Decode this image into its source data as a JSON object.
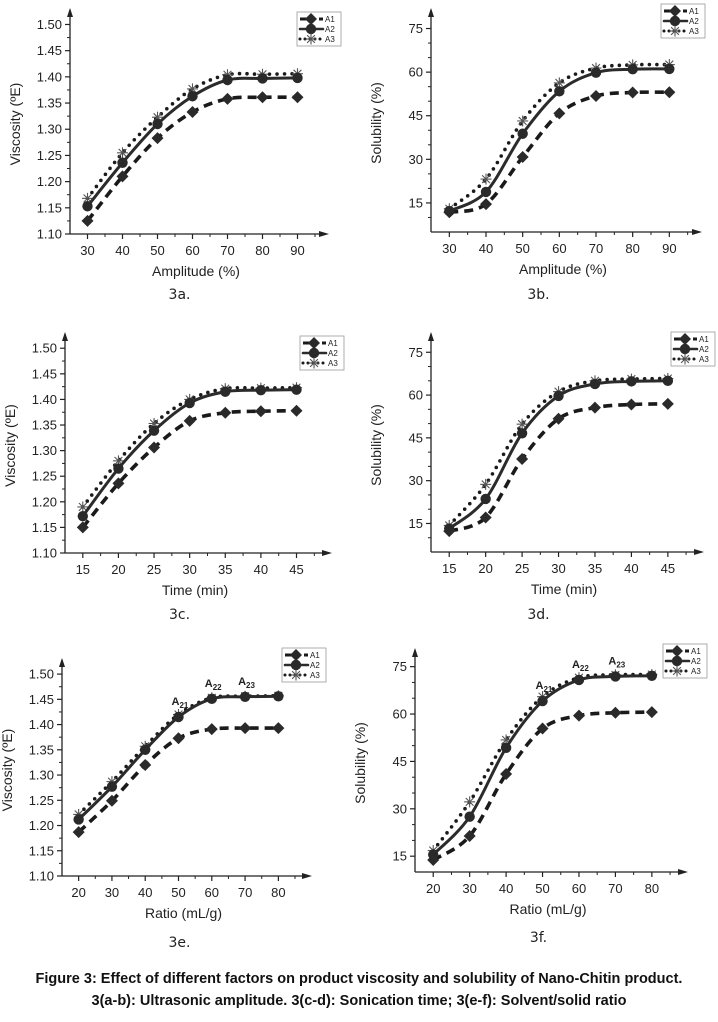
{
  "figure": {
    "caption_line1": "Figure 3: Effect of different factors on product viscosity and solubility of Nano-Chitin product.",
    "caption_line2": "3(a-b): Ultrasonic amplitude. 3(c-d): Sonication time; 3(e-f): Solvent/solid ratio"
  },
  "chart_data": [
    {
      "id": "3a",
      "panel_label": "3a.",
      "type": "line",
      "title": "",
      "xlabel": "Amplitude (%)",
      "ylabel": "Viscosity (ºE)",
      "x": [
        30,
        40,
        50,
        60,
        70,
        80,
        90
      ],
      "xlim": [
        25,
        97
      ],
      "ylim": [
        1.1,
        1.52
      ],
      "xticks": [
        30,
        40,
        50,
        60,
        70,
        80,
        90
      ],
      "yticks": [
        1.1,
        1.15,
        1.2,
        1.25,
        1.3,
        1.35,
        1.4,
        1.45,
        1.5
      ],
      "ytick_format": 2,
      "grid": false,
      "legend": "top-right",
      "series": [
        {
          "name": "A1",
          "style": "dashed",
          "marker": "diamond",
          "values": [
            1.125,
            1.21,
            1.283,
            1.333,
            1.358,
            1.361,
            1.361
          ]
        },
        {
          "name": "A2",
          "style": "solid",
          "marker": "circle",
          "values": [
            1.153,
            1.236,
            1.31,
            1.363,
            1.394,
            1.397,
            1.398
          ]
        },
        {
          "name": "A3",
          "style": "dotted",
          "marker": "asterisk",
          "values": [
            1.168,
            1.255,
            1.323,
            1.377,
            1.404,
            1.405,
            1.406
          ]
        }
      ],
      "annotations": []
    },
    {
      "id": "3b",
      "panel_label": "3b.",
      "type": "line",
      "title": "",
      "xlabel": "Amplitude (%)",
      "ylabel": "Solubility (%)",
      "x": [
        30,
        40,
        50,
        60,
        70,
        80,
        90
      ],
      "xlim": [
        25,
        97
      ],
      "ylim": [
        5,
        80
      ],
      "xticks": [
        30,
        40,
        50,
        60,
        70,
        80,
        90
      ],
      "yticks": [
        15,
        30,
        45,
        60,
        75
      ],
      "ytick_format": 0,
      "grid": false,
      "legend": "top-right",
      "series": [
        {
          "name": "A1",
          "style": "dashed",
          "marker": "diamond",
          "values": [
            11.8,
            14.6,
            30.8,
            45.8,
            51.8,
            53.0,
            53.1
          ]
        },
        {
          "name": "A2",
          "style": "solid",
          "marker": "circle",
          "values": [
            12.2,
            18.8,
            38.8,
            53.4,
            59.8,
            61.0,
            61.1
          ]
        },
        {
          "name": "A3",
          "style": "dotted",
          "marker": "asterisk",
          "values": [
            13.0,
            23.2,
            43.2,
            56.3,
            61.4,
            62.5,
            62.6
          ]
        }
      ],
      "annotations": []
    },
    {
      "id": "3c",
      "panel_label": "3c.",
      "type": "line",
      "title": "",
      "xlabel": "Time (min)",
      "ylabel": "Viscosity (ºE)",
      "x": [
        15,
        20,
        25,
        30,
        35,
        40,
        45
      ],
      "xlim": [
        12.5,
        49
      ],
      "ylim": [
        1.1,
        1.52
      ],
      "xticks": [
        15,
        20,
        25,
        30,
        35,
        40,
        45
      ],
      "yticks": [
        1.1,
        1.15,
        1.2,
        1.25,
        1.3,
        1.35,
        1.4,
        1.45,
        1.5
      ],
      "ytick_format": 2,
      "grid": false,
      "legend": "top-right",
      "series": [
        {
          "name": "A1",
          "style": "dashed",
          "marker": "diamond",
          "values": [
            1.15,
            1.236,
            1.306,
            1.358,
            1.374,
            1.377,
            1.378
          ]
        },
        {
          "name": "A2",
          "style": "solid",
          "marker": "circle",
          "values": [
            1.172,
            1.265,
            1.339,
            1.393,
            1.415,
            1.418,
            1.419
          ]
        },
        {
          "name": "A3",
          "style": "dotted",
          "marker": "asterisk",
          "values": [
            1.19,
            1.28,
            1.353,
            1.4,
            1.421,
            1.422,
            1.423
          ]
        }
      ],
      "annotations": []
    },
    {
      "id": "3d",
      "panel_label": "3d.",
      "type": "line",
      "title": "",
      "xlabel": "Time (min)",
      "ylabel": "Solubility (%)",
      "x": [
        15,
        20,
        25,
        30,
        35,
        40,
        45
      ],
      "xlim": [
        12.5,
        49
      ],
      "ylim": [
        5,
        80
      ],
      "xticks": [
        15,
        20,
        25,
        30,
        35,
        40,
        45
      ],
      "yticks": [
        15,
        30,
        45,
        60,
        75
      ],
      "ytick_format": 0,
      "grid": false,
      "legend": "top-right",
      "series": [
        {
          "name": "A1",
          "style": "dashed",
          "marker": "diamond",
          "values": [
            12.3,
            17.1,
            37.6,
            51.7,
            55.6,
            56.7,
            56.9
          ]
        },
        {
          "name": "A2",
          "style": "solid",
          "marker": "circle",
          "values": [
            13.2,
            23.6,
            46.6,
            59.7,
            63.9,
            64.8,
            65.0
          ]
        },
        {
          "name": "A3",
          "style": "dotted",
          "marker": "asterisk",
          "values": [
            14.3,
            28.7,
            49.8,
            61.2,
            65.0,
            65.6,
            65.8
          ]
        }
      ],
      "annotations": []
    },
    {
      "id": "3e",
      "panel_label": "3e.",
      "type": "line",
      "title": "",
      "xlabel": "Ratio (mL/g)",
      "ylabel": "Viscosity (ºE)",
      "x": [
        20,
        30,
        40,
        50,
        60,
        70,
        80
      ],
      "xlim": [
        15,
        88
      ],
      "ylim": [
        1.1,
        1.52
      ],
      "xticks": [
        20,
        30,
        40,
        50,
        60,
        70,
        80
      ],
      "yticks": [
        1.1,
        1.15,
        1.2,
        1.25,
        1.3,
        1.35,
        1.4,
        1.45,
        1.5
      ],
      "ytick_format": 2,
      "grid": false,
      "legend": "top-right",
      "series": [
        {
          "name": "A1",
          "style": "dashed",
          "marker": "diamond",
          "values": [
            1.187,
            1.249,
            1.32,
            1.373,
            1.391,
            1.393,
            1.393
          ]
        },
        {
          "name": "A2",
          "style": "solid",
          "marker": "circle",
          "values": [
            1.212,
            1.277,
            1.35,
            1.415,
            1.451,
            1.455,
            1.456
          ]
        },
        {
          "name": "A3",
          "style": "dotted",
          "marker": "asterisk",
          "values": [
            1.222,
            1.287,
            1.357,
            1.42,
            1.453,
            1.456,
            1.457
          ]
        }
      ],
      "annotations": [
        {
          "label": "A",
          "sub": "21",
          "x": 50,
          "y": 1.415
        },
        {
          "label": "A",
          "sub": "22",
          "x": 60,
          "y": 1.451
        },
        {
          "label": "A",
          "sub": "23",
          "x": 70,
          "y": 1.455
        }
      ]
    },
    {
      "id": "3f",
      "panel_label": "3f.",
      "type": "line",
      "title": "",
      "xlabel": "Ratio (mL/g)",
      "ylabel": "Solubility (%)",
      "x": [
        20,
        30,
        40,
        50,
        60,
        70,
        80
      ],
      "xlim": [
        15,
        88
      ],
      "ylim": [
        10,
        79
      ],
      "xticks": [
        20,
        30,
        40,
        50,
        60,
        70,
        80
      ],
      "yticks": [
        15,
        30,
        45,
        60,
        75
      ],
      "ytick_format": 0,
      "grid": false,
      "legend": "top-right",
      "series": [
        {
          "name": "A1",
          "style": "dashed",
          "marker": "diamond",
          "values": [
            13.8,
            21.4,
            41.0,
            55.4,
            59.5,
            60.4,
            60.6
          ]
        },
        {
          "name": "A2",
          "style": "solid",
          "marker": "circle",
          "values": [
            15.5,
            27.5,
            49.3,
            64.1,
            70.8,
            71.9,
            72.1
          ]
        },
        {
          "name": "A3",
          "style": "dotted",
          "marker": "asterisk",
          "values": [
            16.8,
            32.2,
            51.8,
            65.5,
            71.5,
            72.4,
            72.5
          ]
        }
      ],
      "annotations": [
        {
          "label": "A",
          "sub": "21",
          "x": 50,
          "y": 64.1
        },
        {
          "label": "A",
          "sub": "22",
          "x": 60,
          "y": 70.8
        },
        {
          "label": "A",
          "sub": "23",
          "x": 70,
          "y": 71.9
        }
      ]
    }
  ]
}
